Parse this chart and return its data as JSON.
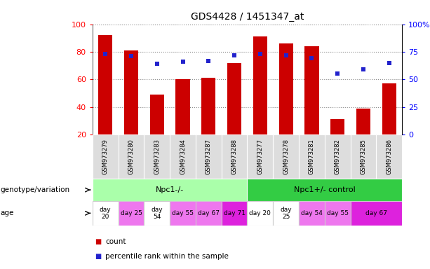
{
  "title": "GDS4428 / 1451347_at",
  "samples": [
    "GSM973279",
    "GSM973280",
    "GSM973283",
    "GSM973284",
    "GSM973287",
    "GSM973288",
    "GSM973277",
    "GSM973278",
    "GSM973281",
    "GSM973282",
    "GSM973285",
    "GSM973286"
  ],
  "bar_values": [
    92,
    81,
    49,
    60,
    61,
    72,
    91,
    86,
    84,
    31,
    39,
    57
  ],
  "dot_values": [
    73,
    71,
    64,
    66,
    67,
    72,
    73,
    72,
    69,
    55,
    59,
    65
  ],
  "bar_color": "#cc0000",
  "dot_color": "#2222cc",
  "ylim_left": [
    20,
    100
  ],
  "left_ticks": [
    20,
    40,
    60,
    80,
    100
  ],
  "right_ticks": [
    0,
    25,
    50,
    75,
    100
  ],
  "right_tick_labels": [
    "0",
    "25",
    "50",
    "75",
    "100%"
  ],
  "genotype_groups": [
    {
      "label": "Npc1-/-",
      "start": 0,
      "end": 6,
      "color": "#aaffaa"
    },
    {
      "label": "Npc1+/- control",
      "start": 6,
      "end": 12,
      "color": "#33cc44"
    }
  ],
  "age_groups": [
    {
      "label": "day\n20",
      "start": 0,
      "end": 1,
      "color": "#ffffff"
    },
    {
      "label": "day 25",
      "start": 1,
      "end": 2,
      "color": "#ee77ee"
    },
    {
      "label": "day\n54",
      "start": 2,
      "end": 3,
      "color": "#ffffff"
    },
    {
      "label": "day 55",
      "start": 3,
      "end": 4,
      "color": "#ee77ee"
    },
    {
      "label": "day 67",
      "start": 4,
      "end": 5,
      "color": "#ee77ee"
    },
    {
      "label": "day 71",
      "start": 5,
      "end": 6,
      "color": "#dd22dd"
    },
    {
      "label": "day 20",
      "start": 6,
      "end": 7,
      "color": "#ffffff"
    },
    {
      "label": "day\n25",
      "start": 7,
      "end": 8,
      "color": "#ffffff"
    },
    {
      "label": "day 54",
      "start": 8,
      "end": 9,
      "color": "#ee77ee"
    },
    {
      "label": "day 55",
      "start": 9,
      "end": 10,
      "color": "#ee77ee"
    },
    {
      "label": "day 67",
      "start": 10,
      "end": 12,
      "color": "#dd22dd"
    }
  ],
  "background_color": "#ffffff",
  "label_genotype": "genotype/variation",
  "label_age": "age",
  "legend_count": "count",
  "legend_percentile": "percentile rank within the sample"
}
